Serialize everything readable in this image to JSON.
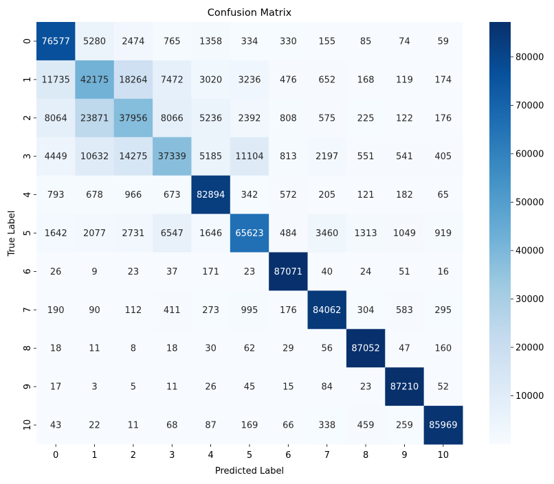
{
  "chart_data": {
    "type": "heatmap",
    "title": "Confusion Matrix",
    "xlabel": "Predicted Label",
    "ylabel": "True Label",
    "x_categories": [
      "0",
      "1",
      "2",
      "3",
      "4",
      "5",
      "6",
      "7",
      "8",
      "9",
      "10"
    ],
    "y_categories": [
      "0",
      "1",
      "2",
      "3",
      "4",
      "5",
      "6",
      "7",
      "8",
      "9",
      "10"
    ],
    "colormap": "Blues",
    "colorbar": {
      "range": [
        3,
        87210
      ],
      "ticks": [
        10000,
        20000,
        30000,
        40000,
        50000,
        60000,
        70000,
        80000
      ],
      "tick_labels": [
        "10000",
        "20000",
        "30000",
        "40000",
        "50000",
        "60000",
        "70000",
        "80000"
      ]
    },
    "colors": [
      "#f7fbff",
      "#deebf7",
      "#c6dbef",
      "#9ecae1",
      "#6baed6",
      "#4292c6",
      "#2171b5",
      "#08519c",
      "#08306b"
    ],
    "values": [
      [
        76577,
        5280,
        2474,
        765,
        1358,
        334,
        330,
        155,
        85,
        74,
        59
      ],
      [
        11735,
        42175,
        18264,
        7472,
        3020,
        3236,
        476,
        652,
        168,
        119,
        174
      ],
      [
        8064,
        23871,
        37956,
        8066,
        5236,
        2392,
        808,
        575,
        225,
        122,
        176
      ],
      [
        4449,
        10632,
        14275,
        37339,
        5185,
        11104,
        813,
        2197,
        551,
        541,
        405
      ],
      [
        793,
        678,
        966,
        673,
        82894,
        342,
        572,
        205,
        121,
        182,
        65
      ],
      [
        1642,
        2077,
        2731,
        6547,
        1646,
        65623,
        484,
        3460,
        1313,
        1049,
        919
      ],
      [
        26,
        9,
        23,
        37,
        171,
        23,
        87071,
        40,
        24,
        51,
        16
      ],
      [
        190,
        90,
        112,
        411,
        273,
        995,
        176,
        84062,
        304,
        583,
        295
      ],
      [
        18,
        11,
        8,
        18,
        30,
        62,
        29,
        56,
        87052,
        47,
        160
      ],
      [
        17,
        3,
        5,
        11,
        26,
        45,
        15,
        84,
        23,
        87210,
        52
      ],
      [
        43,
        22,
        11,
        68,
        87,
        169,
        66,
        338,
        459,
        259,
        85969
      ]
    ]
  }
}
